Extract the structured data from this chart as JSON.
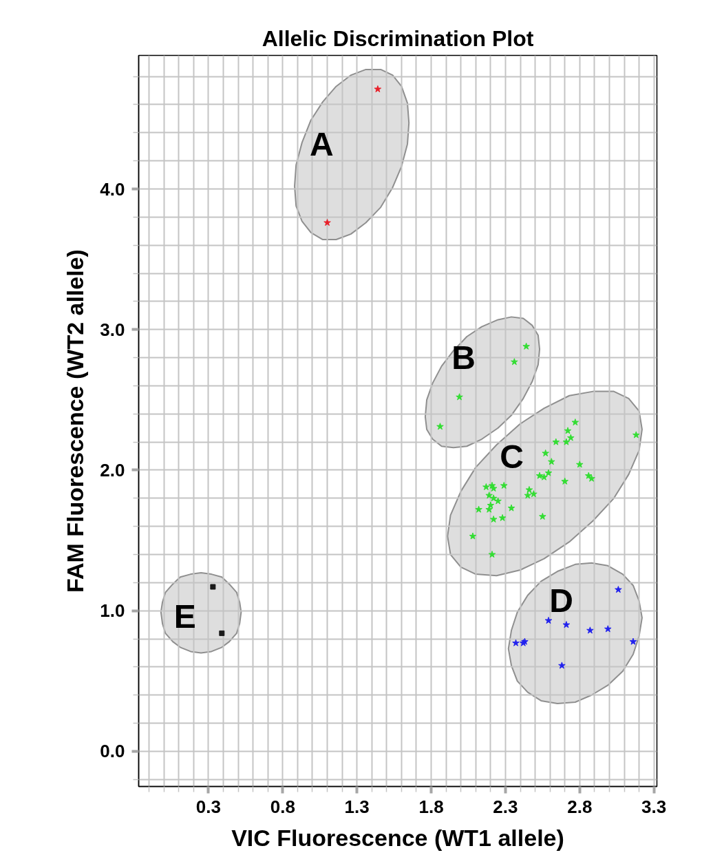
{
  "chart_data": {
    "type": "scatter",
    "title": "Allelic Discrimination Plot",
    "xlabel": "VIC Fluorescence (WT1 allele)",
    "ylabel": "FAM Fluorescence (WT2 allele)",
    "xlim": [
      -0.17,
      3.32
    ],
    "ylim": [
      -0.25,
      4.95
    ],
    "xticks": [
      {
        "value": -0.1,
        "label": null
      },
      {
        "value": 0.0,
        "label": null
      },
      {
        "value": 0.1,
        "label": null
      },
      {
        "value": 0.2,
        "label": null
      },
      0.3,
      {
        "value": 0.4,
        "label": null
      },
      {
        "value": 0.5,
        "label": null
      },
      {
        "value": 0.6,
        "label": null
      },
      {
        "value": 0.7,
        "label": null
      },
      0.8,
      {
        "value": 0.9,
        "label": null
      },
      {
        "value": 1.0,
        "label": null
      },
      {
        "value": 1.1,
        "label": null
      },
      {
        "value": 1.2,
        "label": null
      },
      1.3,
      {
        "value": 1.4,
        "label": null
      },
      {
        "value": 1.5,
        "label": null
      },
      {
        "value": 1.6,
        "label": null
      },
      {
        "value": 1.7,
        "label": null
      },
      1.8,
      {
        "value": 1.9,
        "label": null
      },
      {
        "value": 2.0,
        "label": null
      },
      {
        "value": 2.1,
        "label": null
      },
      {
        "value": 2.2,
        "label": null
      },
      2.3,
      {
        "value": 2.4,
        "label": null
      },
      {
        "value": 2.5,
        "label": null
      },
      {
        "value": 2.6,
        "label": null
      },
      {
        "value": 2.7,
        "label": null
      },
      2.8,
      {
        "value": 2.9,
        "label": null
      },
      {
        "value": 3.0,
        "label": null
      },
      {
        "value": 3.1,
        "label": null
      },
      {
        "value": 3.2,
        "label": null
      },
      3.3
    ],
    "yticks": [
      {
        "value": -0.2,
        "label": null
      },
      {
        "value": 0,
        "label": "0.0"
      },
      {
        "value": 0.2,
        "label": null
      },
      {
        "value": 0.4,
        "label": null
      },
      {
        "value": 0.6,
        "label": null
      },
      {
        "value": 0.8,
        "label": null
      },
      {
        "value": 1,
        "label": "1.0"
      },
      {
        "value": 1.2,
        "label": null
      },
      {
        "value": 1.4,
        "label": null
      },
      {
        "value": 1.6,
        "label": null
      },
      {
        "value": 1.8,
        "label": null
      },
      {
        "value": 2,
        "label": "2.0"
      },
      {
        "value": 2.2,
        "label": null
      },
      {
        "value": 2.4,
        "label": null
      },
      {
        "value": 2.6,
        "label": null
      },
      {
        "value": 2.8,
        "label": null
      },
      {
        "value": 3,
        "label": "3.0"
      },
      {
        "value": 3.2,
        "label": null
      },
      {
        "value": 3.4,
        "label": null
      },
      {
        "value": 3.6,
        "label": null
      },
      {
        "value": 3.8,
        "label": null
      },
      {
        "value": 4,
        "label": "4.0"
      },
      {
        "value": 4.2,
        "label": null
      },
      {
        "value": 4.4,
        "label": null
      },
      {
        "value": 4.6,
        "label": null
      },
      {
        "value": 4.8,
        "label": null
      }
    ],
    "grid": true,
    "marker": "star",
    "series": [
      {
        "name": "A",
        "color": "#e8202a",
        "x": [
          1.44,
          1.1
        ],
        "values": [
          4.71,
          3.76
        ]
      },
      {
        "name": "B",
        "color": "#33dd33",
        "x": [
          2.44,
          2.36,
          1.99,
          1.86
        ],
        "values": [
          2.88,
          2.77,
          2.52,
          2.31
        ]
      },
      {
        "name": "C",
        "color": "#33dd33",
        "x": [
          2.77,
          3.18,
          2.72,
          2.74,
          2.71,
          2.64,
          2.57,
          2.61,
          2.8,
          2.59,
          2.53,
          2.56,
          2.86,
          2.88,
          2.7,
          2.46,
          2.45,
          2.49,
          2.55,
          2.29,
          2.21,
          2.17,
          2.22,
          2.19,
          2.22,
          2.25,
          2.2,
          2.19,
          2.12,
          2.34,
          2.22,
          2.28,
          2.08,
          2.21
        ],
        "values": [
          2.34,
          2.25,
          2.28,
          2.23,
          2.2,
          2.2,
          2.12,
          2.06,
          2.04,
          1.98,
          1.96,
          1.95,
          1.96,
          1.94,
          1.92,
          1.86,
          1.82,
          1.83,
          1.67,
          1.89,
          1.89,
          1.88,
          1.87,
          1.82,
          1.8,
          1.78,
          1.75,
          1.72,
          1.72,
          1.73,
          1.65,
          1.66,
          1.53,
          1.4
        ]
      },
      {
        "name": "D",
        "color": "#2222ee",
        "x": [
          3.06,
          2.59,
          2.71,
          2.87,
          2.99,
          3.16,
          2.37,
          2.43,
          2.42,
          2.68
        ],
        "values": [
          1.15,
          0.93,
          0.9,
          0.86,
          0.87,
          0.78,
          0.77,
          0.78,
          0.77,
          0.61
        ]
      },
      {
        "name": "E",
        "color": "#1a1a1a",
        "marker": "square",
        "x": [
          0.33,
          0.39
        ],
        "values": [
          1.17,
          0.84
        ]
      },
      {
        "type": "line",
        "color": "#dedede",
        "x": [
          0.88,
          0.89,
          0.93,
          0.99,
          1.07,
          1.16,
          1.26,
          1.36,
          1.46,
          1.54,
          1.6,
          1.64,
          1.65
        ],
        "values": [
          null,
          null,
          null,
          null,
          null,
          null,
          null,
          null,
          null,
          null,
          null,
          null,
          null
        ],
        "lower": [
          4.02,
          3.88,
          3.77,
          3.69,
          3.64,
          3.64,
          3.68,
          3.76,
          3.87,
          4.01,
          4.16,
          4.32,
          4.47
        ],
        "upper": [
          4.02,
          4.17,
          4.33,
          4.49,
          4.62,
          4.73,
          4.81,
          4.85,
          4.85,
          4.81,
          4.73,
          4.61,
          4.47
        ]
      },
      {
        "type": "line",
        "color": "#dedede",
        "x": [
          1.76,
          1.77,
          1.81,
          1.87,
          1.95,
          2.04,
          2.14,
          2.25,
          2.34,
          2.42,
          2.48,
          2.52,
          2.53
        ],
        "values": [
          null,
          null,
          null,
          null,
          null,
          null,
          null,
          null,
          null,
          null,
          null,
          null,
          null
        ],
        "lower": [
          2.38,
          2.29,
          2.22,
          2.17,
          2.16,
          2.17,
          2.22,
          2.3,
          2.39,
          2.51,
          2.63,
          2.75,
          2.86
        ],
        "upper": [
          2.38,
          2.5,
          2.62,
          2.74,
          2.85,
          2.95,
          3.02,
          3.07,
          3.09,
          3.08,
          3.03,
          2.96,
          2.86
        ]
      },
      {
        "type": "line",
        "color": "#dedede",
        "x": [
          1.91,
          1.93,
          2.0,
          2.1,
          2.24,
          2.4,
          2.56,
          2.73,
          2.89,
          3.03,
          3.13,
          3.2,
          3.22
        ],
        "values": [
          null,
          null,
          null,
          null,
          null,
          null,
          null,
          null,
          null,
          null,
          null,
          null,
          null
        ],
        "lower": [
          1.53,
          1.4,
          1.31,
          1.26,
          1.25,
          1.29,
          1.37,
          1.49,
          1.64,
          1.8,
          1.97,
          2.14,
          2.29
        ],
        "upper": [
          1.53,
          1.68,
          1.85,
          2.02,
          2.18,
          2.33,
          2.44,
          2.53,
          2.56,
          2.56,
          2.51,
          2.42,
          2.29
        ]
      },
      {
        "type": "line",
        "color": "#dedede",
        "x": [
          2.32,
          2.34,
          2.38,
          2.45,
          2.54,
          2.65,
          2.77,
          2.88,
          2.99,
          3.09,
          3.16,
          3.2,
          3.22
        ],
        "values": [
          null,
          null,
          null,
          null,
          null,
          null,
          null,
          null,
          null,
          null,
          null,
          null,
          null
        ],
        "lower": [
          0.73,
          0.61,
          0.5,
          0.42,
          0.36,
          0.34,
          0.35,
          0.4,
          0.47,
          0.57,
          0.69,
          0.82,
          0.95
        ],
        "upper": [
          0.73,
          0.86,
          0.99,
          1.11,
          1.21,
          1.28,
          1.33,
          1.34,
          1.32,
          1.26,
          1.18,
          1.07,
          0.95
        ]
      },
      {
        "type": "line",
        "color": "#dedede",
        "x": [
          -0.02,
          -0.01,
          0.01,
          0.06,
          0.11,
          0.18,
          0.25,
          0.32,
          0.39,
          0.44,
          0.49,
          0.51,
          0.52
        ],
        "values": [
          null,
          null,
          null,
          null,
          null,
          null,
          null,
          null,
          null,
          null,
          null,
          null,
          null
        ],
        "lower": [
          0.99,
          0.91,
          0.84,
          0.78,
          0.74,
          0.71,
          0.7,
          0.71,
          0.74,
          0.78,
          0.84,
          0.91,
          0.99
        ],
        "upper": [
          0.99,
          1.06,
          1.13,
          1.19,
          1.24,
          1.26,
          1.27,
          1.26,
          1.24,
          1.19,
          1.13,
          1.06,
          0.99
        ]
      }
    ]
  }
}
